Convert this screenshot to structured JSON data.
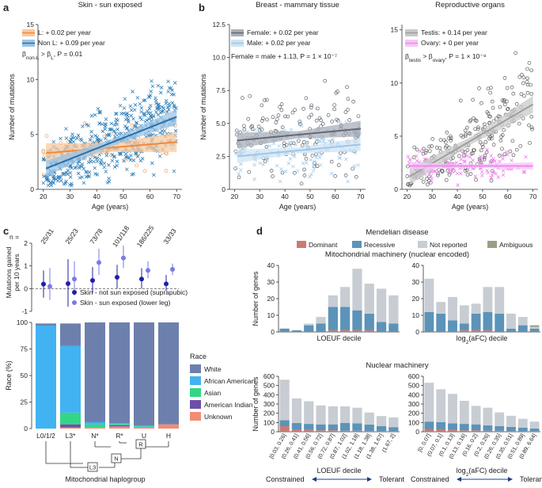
{
  "panel_letters": [
    "a",
    "b",
    "c",
    "d"
  ],
  "colors": {
    "orange": "#f2a366",
    "blue": "#2f7fba",
    "grey": "#6f7a88",
    "lightblue": "#b9d6f0",
    "green_grey": "#a7a7a7",
    "pink": "#f08cf0",
    "dark_navy": "#1f1fa8",
    "lavender": "#7a7ae8",
    "white_race": "#6d80ad",
    "afam": "#41b3f2",
    "asian": "#33d685",
    "amind": "#6d4fa8",
    "unknown": "#f28c73",
    "dominant": "#c97a73",
    "recessive": "#5c93b8",
    "not_reported": "#c8cdd3",
    "ambiguous": "#9aa084"
  },
  "chart_data": [
    {
      "id": "a",
      "type": "scatter",
      "title": "Skin - sun exposed",
      "xlabel": "Age (years)",
      "ylabel": "Number of mutations",
      "xlim": [
        18,
        72
      ],
      "ylim": [
        0,
        15
      ],
      "xticks": [
        "20",
        "30",
        "40",
        "50",
        "60",
        "70"
      ],
      "yticks": [
        "0",
        "5",
        "10",
        "15"
      ],
      "legend": [
        "L: + 0.02 per year",
        "Non L: + 0.09 per year"
      ],
      "annotation": "β_non-L > β_L, P = 0.01",
      "series": [
        {
          "name": "L",
          "slope": 0.02,
          "fit": [
            [
              21,
              3.3
            ],
            [
              70,
              4.3
            ]
          ]
        },
        {
          "name": "Non L",
          "slope": 0.09,
          "fit": [
            [
              21,
              1.9
            ],
            [
              70,
              6.6
            ]
          ]
        }
      ]
    },
    {
      "id": "b1",
      "type": "scatter",
      "title": "Breast - mammary tissue",
      "xlabel": "Age (years)",
      "ylabel": "Number of mutations",
      "xlim": [
        18,
        72
      ],
      "ylim": [
        0,
        12.5
      ],
      "xticks": [
        "20",
        "30",
        "40",
        "50",
        "60",
        "70"
      ],
      "yticks": [
        "0",
        "2.5",
        "5.0",
        "7.5",
        "10.0",
        "12.5"
      ],
      "legend": [
        "Female: + 0.02 per year",
        "Male: + 0.02 per year"
      ],
      "annotation": "Female = male + 1.13, P = 1 × 10⁻⁷",
      "series": [
        {
          "name": "Female",
          "slope": 0.02,
          "fit": [
            [
              21,
              3.7
            ],
            [
              70,
              4.6
            ]
          ]
        },
        {
          "name": "Male",
          "slope": 0.02,
          "fit": [
            [
              21,
              2.5
            ],
            [
              70,
              3.4
            ]
          ]
        }
      ]
    },
    {
      "id": "b2",
      "type": "scatter",
      "title": "Reproductive organs",
      "xlabel": "Age (years)",
      "ylabel": "",
      "xlim": [
        18,
        72
      ],
      "ylim": [
        0,
        15.5
      ],
      "xticks": [
        "20",
        "30",
        "40",
        "50",
        "60",
        "70"
      ],
      "yticks": [
        "0",
        "5",
        "10",
        "15"
      ],
      "legend": [
        "Testis: + 0.14 per year",
        "Ovary: + 0 per year"
      ],
      "annotation": "β_testis > β_ovary, P = 1 × 10⁻⁸",
      "series": [
        {
          "name": "Testis",
          "slope": 0.14,
          "fit": [
            [
              21,
              1.2
            ],
            [
              70,
              8.0
            ]
          ]
        },
        {
          "name": "Ovary",
          "slope": 0.0,
          "fit": [
            [
              21,
              2.2
            ],
            [
              70,
              2.2
            ]
          ]
        }
      ]
    },
    {
      "id": "c_top",
      "type": "scatter",
      "ylabel": "Mutations gained per 10 years",
      "ylim": [
        -1,
        2
      ],
      "yticks": [
        "-1",
        "0",
        "1",
        "2"
      ],
      "categories": [
        "L0/1/2",
        "L3*",
        "N*",
        "R*",
        "U",
        "H"
      ],
      "n_labels": [
        "25/31",
        "25/23",
        "73/78",
        "101/118",
        "186/225",
        "33/33"
      ],
      "n_prefix": "n =",
      "legend": [
        "Skin - not sun exposed (suprapubic)",
        "Skin - sun exposed (lower leg)"
      ],
      "series": [
        {
          "name": "Skin - not sun exposed (suprapubic)",
          "values": [
            0.2,
            0.22,
            0.36,
            0.5,
            0.42,
            0.21
          ],
          "ci": [
            [
              -0.4,
              0.8
            ],
            [
              -0.8,
              1.3
            ],
            [
              -0.2,
              0.95
            ],
            [
              0.0,
              1.05
            ],
            [
              0.0,
              0.9
            ],
            [
              -0.1,
              0.6
            ]
          ]
        },
        {
          "name": "Skin - sun exposed (lower leg)",
          "values": [
            0.1,
            0.42,
            1.15,
            1.35,
            0.8,
            0.85
          ],
          "ci": [
            [
              -0.5,
              0.9
            ],
            [
              -0.3,
              1.2
            ],
            [
              0.6,
              1.75
            ],
            [
              0.9,
              1.9
            ],
            [
              0.45,
              1.2
            ],
            [
              0.6,
              1.1
            ]
          ]
        }
      ]
    },
    {
      "id": "c_bottom",
      "type": "bar",
      "stacked": true,
      "ylabel": "Race (%)",
      "ylim": [
        0,
        100
      ],
      "yticks": [
        "0",
        "25",
        "50",
        "75",
        "100"
      ],
      "categories": [
        "L0/1/2",
        "L3*",
        "N*",
        "R*",
        "U",
        "H"
      ],
      "legend_title": "Race",
      "series": [
        {
          "name": "Unknown",
          "values": [
            0,
            1,
            1,
            2,
            1,
            4
          ]
        },
        {
          "name": "American Indian",
          "values": [
            0,
            3,
            0,
            1,
            0,
            0
          ]
        },
        {
          "name": "Asian",
          "values": [
            0,
            11,
            3,
            1,
            1,
            0
          ]
        },
        {
          "name": "African American",
          "values": [
            97,
            63,
            2,
            1,
            1,
            0
          ]
        },
        {
          "name": "White",
          "values": [
            2,
            21,
            94,
            95,
            97,
            96
          ]
        }
      ],
      "xlabel": "Mitochondrial haplogroup",
      "tree_nodes": [
        "L3",
        "N",
        "R"
      ]
    },
    {
      "id": "d_legend",
      "type": "table",
      "title": "Mendelian disease",
      "entries": [
        "Dominant",
        "Recessive",
        "Not reported",
        "Ambiguous"
      ]
    },
    {
      "id": "d_mito_loeuf",
      "type": "bar",
      "stacked": true,
      "section_title": "Mitochondrial machinery (nuclear encoded)",
      "xlabel": "LOEUF decile",
      "ylabel": "Number of genes",
      "ylim": [
        0,
        40
      ],
      "yticks": [
        "0",
        "10",
        "20",
        "30",
        "40"
      ],
      "series": [
        {
          "name": "Dominant",
          "values": [
            0,
            0,
            0,
            0,
            1,
            1,
            1,
            1,
            0,
            0
          ]
        },
        {
          "name": "Recessive",
          "values": [
            2,
            1,
            4,
            5,
            14,
            14,
            12,
            10,
            6,
            5
          ]
        },
        {
          "name": "Not reported",
          "values": [
            0,
            0,
            1,
            4,
            7,
            12,
            25,
            18,
            20,
            17
          ]
        },
        {
          "name": "Ambiguous",
          "values": [
            0,
            0,
            0,
            0,
            0,
            0,
            0,
            0,
            0,
            0
          ]
        }
      ]
    },
    {
      "id": "d_mito_afc",
      "type": "bar",
      "stacked": true,
      "xlabel": "log2(aFC) decile",
      "ylabel": "",
      "ylim": [
        0,
        40
      ],
      "yticks": [
        "0",
        "10",
        "20",
        "30",
        "40"
      ],
      "series": [
        {
          "name": "Dominant",
          "values": [
            0,
            0,
            0,
            1,
            1,
            1,
            0,
            0,
            0,
            0
          ]
        },
        {
          "name": "Recessive",
          "values": [
            12,
            11,
            7,
            4,
            10,
            11,
            11,
            2,
            4,
            2
          ]
        },
        {
          "name": "Not reported",
          "values": [
            20,
            7,
            14,
            11,
            6,
            15,
            16,
            9,
            5,
            1
          ]
        },
        {
          "name": "Ambiguous",
          "values": [
            0,
            0,
            0,
            0,
            0,
            0,
            0,
            0,
            0,
            1
          ]
        }
      ]
    },
    {
      "id": "d_nuc_loeuf",
      "type": "bar",
      "stacked": true,
      "section_title": "Nuclear machinery",
      "xlabel": "LOEUF decile",
      "ylabel": "Number of genes",
      "ylim": [
        0,
        600
      ],
      "yticks": [
        "0",
        "100",
        "200",
        "300",
        "400",
        "500",
        "600"
      ],
      "categories": [
        "[0.03, 0.26]",
        "(0.26, 0.41]",
        "(0.41, 0.56]",
        "(0.56, 0.72]",
        "(0.72, 0.87]",
        "(0.87, 1.02]",
        "(1.02, 1.18]",
        "(1.18, 1.38]",
        "(1.38, 1.67]",
        "(1.67, 2]"
      ],
      "series": [
        {
          "name": "Dominant",
          "values": [
            60,
            25,
            20,
            15,
            15,
            10,
            10,
            8,
            5,
            5
          ]
        },
        {
          "name": "Recessive",
          "values": [
            65,
            70,
            65,
            65,
            65,
            85,
            80,
            70,
            55,
            45
          ]
        },
        {
          "name": "Not reported",
          "values": [
            430,
            265,
            245,
            205,
            195,
            180,
            170,
            130,
            110,
            105
          ]
        },
        {
          "name": "Ambiguous",
          "values": [
            5,
            0,
            0,
            0,
            0,
            0,
            0,
            0,
            0,
            0
          ]
        }
      ],
      "footer": [
        "Constrained",
        "Tolerant"
      ]
    },
    {
      "id": "d_nuc_afc",
      "type": "bar",
      "stacked": true,
      "xlabel": "log2(aFC) decile",
      "ylabel": "",
      "ylim": [
        0,
        600
      ],
      "yticks": [
        "0",
        "100",
        "200",
        "300",
        "400",
        "500",
        "600"
      ],
      "categories": [
        "[0, 0.07]",
        "(0.07, 0.1]",
        "(0.1, 0.13]",
        "(0.13, 0.16]",
        "(0.16, 0.2]",
        "(0.2, 0.26]",
        "(0.26, 0.35]",
        "(0.35, 0.51]",
        "(0.51, 0.89]",
        "(0.89, 6.64]"
      ],
      "series": [
        {
          "name": "Dominant",
          "values": [
            30,
            30,
            20,
            15,
            15,
            10,
            10,
            8,
            5,
            5
          ]
        },
        {
          "name": "Recessive",
          "values": [
            80,
            75,
            70,
            70,
            65,
            60,
            50,
            45,
            40,
            30
          ]
        },
        {
          "name": "Not reported",
          "values": [
            420,
            355,
            320,
            250,
            200,
            190,
            150,
            120,
            95,
            75
          ]
        },
        {
          "name": "Ambiguous",
          "values": [
            0,
            0,
            0,
            0,
            0,
            0,
            0,
            0,
            0,
            0
          ]
        }
      ],
      "footer": [
        "Constrained",
        "Tolerant"
      ]
    }
  ]
}
